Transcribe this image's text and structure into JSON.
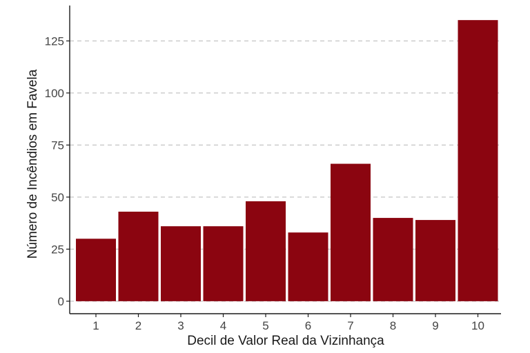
{
  "chart_data": {
    "type": "bar",
    "categories": [
      "1",
      "2",
      "3",
      "4",
      "5",
      "6",
      "7",
      "8",
      "9",
      "10"
    ],
    "values": [
      30,
      43,
      36,
      36,
      48,
      33,
      66,
      40,
      39,
      135
    ],
    "xlabel": "Decil de Valor Real da Vizinhança",
    "ylabel": "Número de Incêndios em Favela",
    "yticks": [
      0,
      25,
      50,
      75,
      100,
      125
    ],
    "ylim": [
      -6,
      142
    ],
    "bar_color": "#8b0510",
    "grid": "horizontal-dashed",
    "legend": "none"
  }
}
